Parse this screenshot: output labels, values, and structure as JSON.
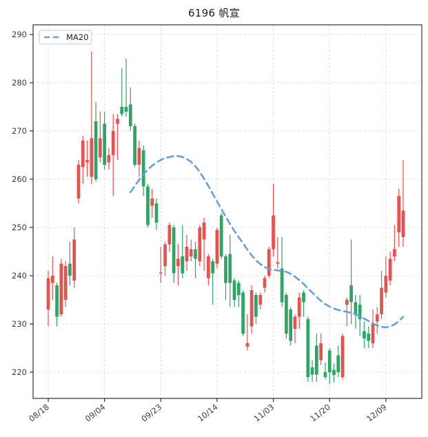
{
  "title": "6196 帆宣",
  "legend": {
    "label": "MA20"
  },
  "colors": {
    "up": "#E8524D",
    "down": "#2EA663",
    "ma20": "#66A0DB",
    "grid": "#DCDCDC",
    "spine": "#2F2F2F",
    "tick_label": "#3C3C3C",
    "title": "#1A1A1A",
    "legend_border": "#C9C9C9",
    "background": "#FFFFFF"
  },
  "chart_data": {
    "type": "candlestick",
    "title": "6196 帆宣",
    "xlabel": "",
    "ylabel": "",
    "grid": true,
    "legend_position": "upper-left",
    "ylim": [
      214.5,
      292
    ],
    "yticks": [
      220,
      230,
      240,
      250,
      260,
      270,
      280,
      290
    ],
    "xtick_labels": [
      "08/18",
      "09/04",
      "09/23",
      "10/14",
      "11/03",
      "11/20",
      "12/09"
    ],
    "xtick_indices": [
      0,
      13,
      26,
      39,
      52,
      65,
      78
    ],
    "series": [
      {
        "name": "MA20",
        "style": "dashed-line",
        "start_index": 19,
        "values": [
          257.3,
          258.6,
          259.9,
          261.0,
          262.0,
          262.8,
          263.5,
          264.0,
          264.4,
          264.6,
          264.8,
          264.8,
          264.6,
          264.2,
          263.6,
          262.7,
          261.5,
          260.1,
          258.6,
          257.0,
          255.4,
          253.8,
          252.2,
          250.7,
          249.3,
          248.0,
          246.7,
          245.4,
          244.2,
          243.2,
          242.4,
          241.8,
          241.4,
          241.2,
          241.1,
          241.0,
          240.8,
          240.4,
          239.8,
          239.1,
          238.3,
          237.4,
          236.5,
          235.6,
          234.8,
          234.1,
          233.6,
          233.2,
          232.9,
          232.7,
          232.5,
          232.3,
          232.0,
          231.6,
          231.1,
          230.6,
          230.1,
          229.7,
          229.4,
          229.3,
          229.5,
          229.9,
          230.6,
          231.5
        ]
      }
    ],
    "candles_ohlc": [
      [
        233,
        241,
        229.5,
        239.5
      ],
      [
        238.5,
        244,
        235,
        240
      ],
      [
        238,
        238.5,
        229.5,
        231.5
      ],
      [
        232,
        243.5,
        231.5,
        242.5
      ],
      [
        235,
        243,
        233.5,
        242
      ],
      [
        242.5,
        247,
        238,
        240
      ],
      [
        239,
        250,
        237.5,
        247.5
      ],
      [
        256,
        264,
        255,
        263
      ],
      [
        262.5,
        269,
        259,
        268
      ],
      [
        263.5,
        268,
        260.5,
        264
      ],
      [
        260.5,
        286.5,
        259,
        268.5
      ],
      [
        272,
        276,
        259.5,
        260
      ],
      [
        264.5,
        274,
        263.5,
        268.5
      ],
      [
        271.5,
        274,
        262,
        263
      ],
      [
        263.5,
        266.5,
        262,
        265
      ],
      [
        265,
        273.5,
        256.5,
        270
      ],
      [
        271.5,
        273.5,
        264,
        272.5
      ],
      [
        275,
        283,
        273,
        273.5
      ],
      [
        275,
        285,
        273,
        274
      ],
      [
        275.5,
        279,
        270,
        271
      ],
      [
        271,
        271.5,
        262.5,
        263
      ],
      [
        263,
        268,
        260.5,
        266.5
      ],
      [
        266,
        267,
        256.5,
        258.5
      ],
      [
        258.5,
        259,
        250,
        250.5
      ],
      [
        254.5,
        258,
        252,
        256
      ],
      [
        255,
        256,
        249.5,
        251
      ],
      [
        240.5,
        246,
        238.5,
        240.7
      ],
      [
        242,
        247,
        240,
        246.5
      ],
      [
        246.5,
        251,
        245,
        250.5
      ],
      [
        250,
        250.5,
        238.5,
        240.5
      ],
      [
        242,
        246.5,
        238,
        243.5
      ],
      [
        244,
        250.5,
        239.5,
        240.5
      ],
      [
        243,
        248.5,
        241,
        246
      ],
      [
        244,
        247.5,
        243,
        245.5
      ],
      [
        245.5,
        247,
        239.5,
        243.5
      ],
      [
        243,
        250.5,
        242,
        250
      ],
      [
        247.5,
        252,
        241,
        251
      ],
      [
        239.5,
        244.5,
        238,
        244
      ],
      [
        243,
        243.5,
        234,
        240.5
      ],
      [
        242.5,
        250,
        241.5,
        249.5
      ],
      [
        252.5,
        253,
        243.5,
        244
      ],
      [
        244,
        244.5,
        235,
        238.5
      ],
      [
        244.5,
        248.5,
        233.5,
        238.5
      ],
      [
        239,
        239.5,
        233.5,
        235
      ],
      [
        238.5,
        239,
        233.5,
        236
      ],
      [
        236.5,
        237,
        227.5,
        228
      ],
      [
        225.3,
        232,
        224.5,
        226
      ],
      [
        229.5,
        238,
        228,
        237
      ],
      [
        236,
        236.5,
        230,
        231.5
      ],
      [
        234,
        236.5,
        233,
        236
      ],
      [
        237.5,
        240,
        236.5,
        239.5
      ],
      [
        240,
        246,
        239.5,
        245.5
      ],
      [
        245.5,
        259,
        244,
        252.5
      ],
      [
        242.5,
        248,
        241.5,
        242.8
      ],
      [
        241.5,
        248,
        233.5,
        234.5
      ],
      [
        236,
        236.5,
        227,
        228
      ],
      [
        233,
        233.5,
        225.5,
        226.5
      ],
      [
        229,
        232,
        226,
        231.5
      ],
      [
        231.5,
        236.5,
        229,
        235.5
      ],
      [
        236.5,
        237,
        231.5,
        234.5
      ],
      [
        231,
        231.5,
        218,
        219
      ],
      [
        221,
        222.5,
        218,
        219.5
      ],
      [
        225.5,
        228,
        218,
        219.5
      ],
      [
        222.5,
        228,
        221.5,
        226
      ],
      [
        220,
        222,
        218.5,
        219
      ],
      [
        224.5,
        225,
        217.6,
        220
      ],
      [
        220.5,
        221.8,
        217.9,
        219.4
      ],
      [
        223.5,
        225.5,
        219,
        220
      ],
      [
        219,
        228,
        218.5,
        227.5
      ],
      [
        234,
        235.5,
        229.5,
        235
      ],
      [
        238,
        247.5,
        230,
        234.5
      ],
      [
        234.5,
        236,
        229,
        232
      ],
      [
        234,
        236,
        227.5,
        231
      ],
      [
        228.5,
        230.5,
        225,
        227
      ],
      [
        228,
        229.5,
        225,
        226.5
      ],
      [
        226,
        233,
        225,
        230
      ],
      [
        230.5,
        233.5,
        228,
        232
      ],
      [
        232,
        241,
        231,
        237.5
      ],
      [
        236.5,
        244,
        235.5,
        240
      ],
      [
        239,
        245,
        238,
        243.5
      ],
      [
        244,
        250.5,
        243,
        245.5
      ],
      [
        249,
        258,
        246,
        256.5
      ],
      [
        248,
        264,
        246,
        253.5
      ]
    ]
  }
}
